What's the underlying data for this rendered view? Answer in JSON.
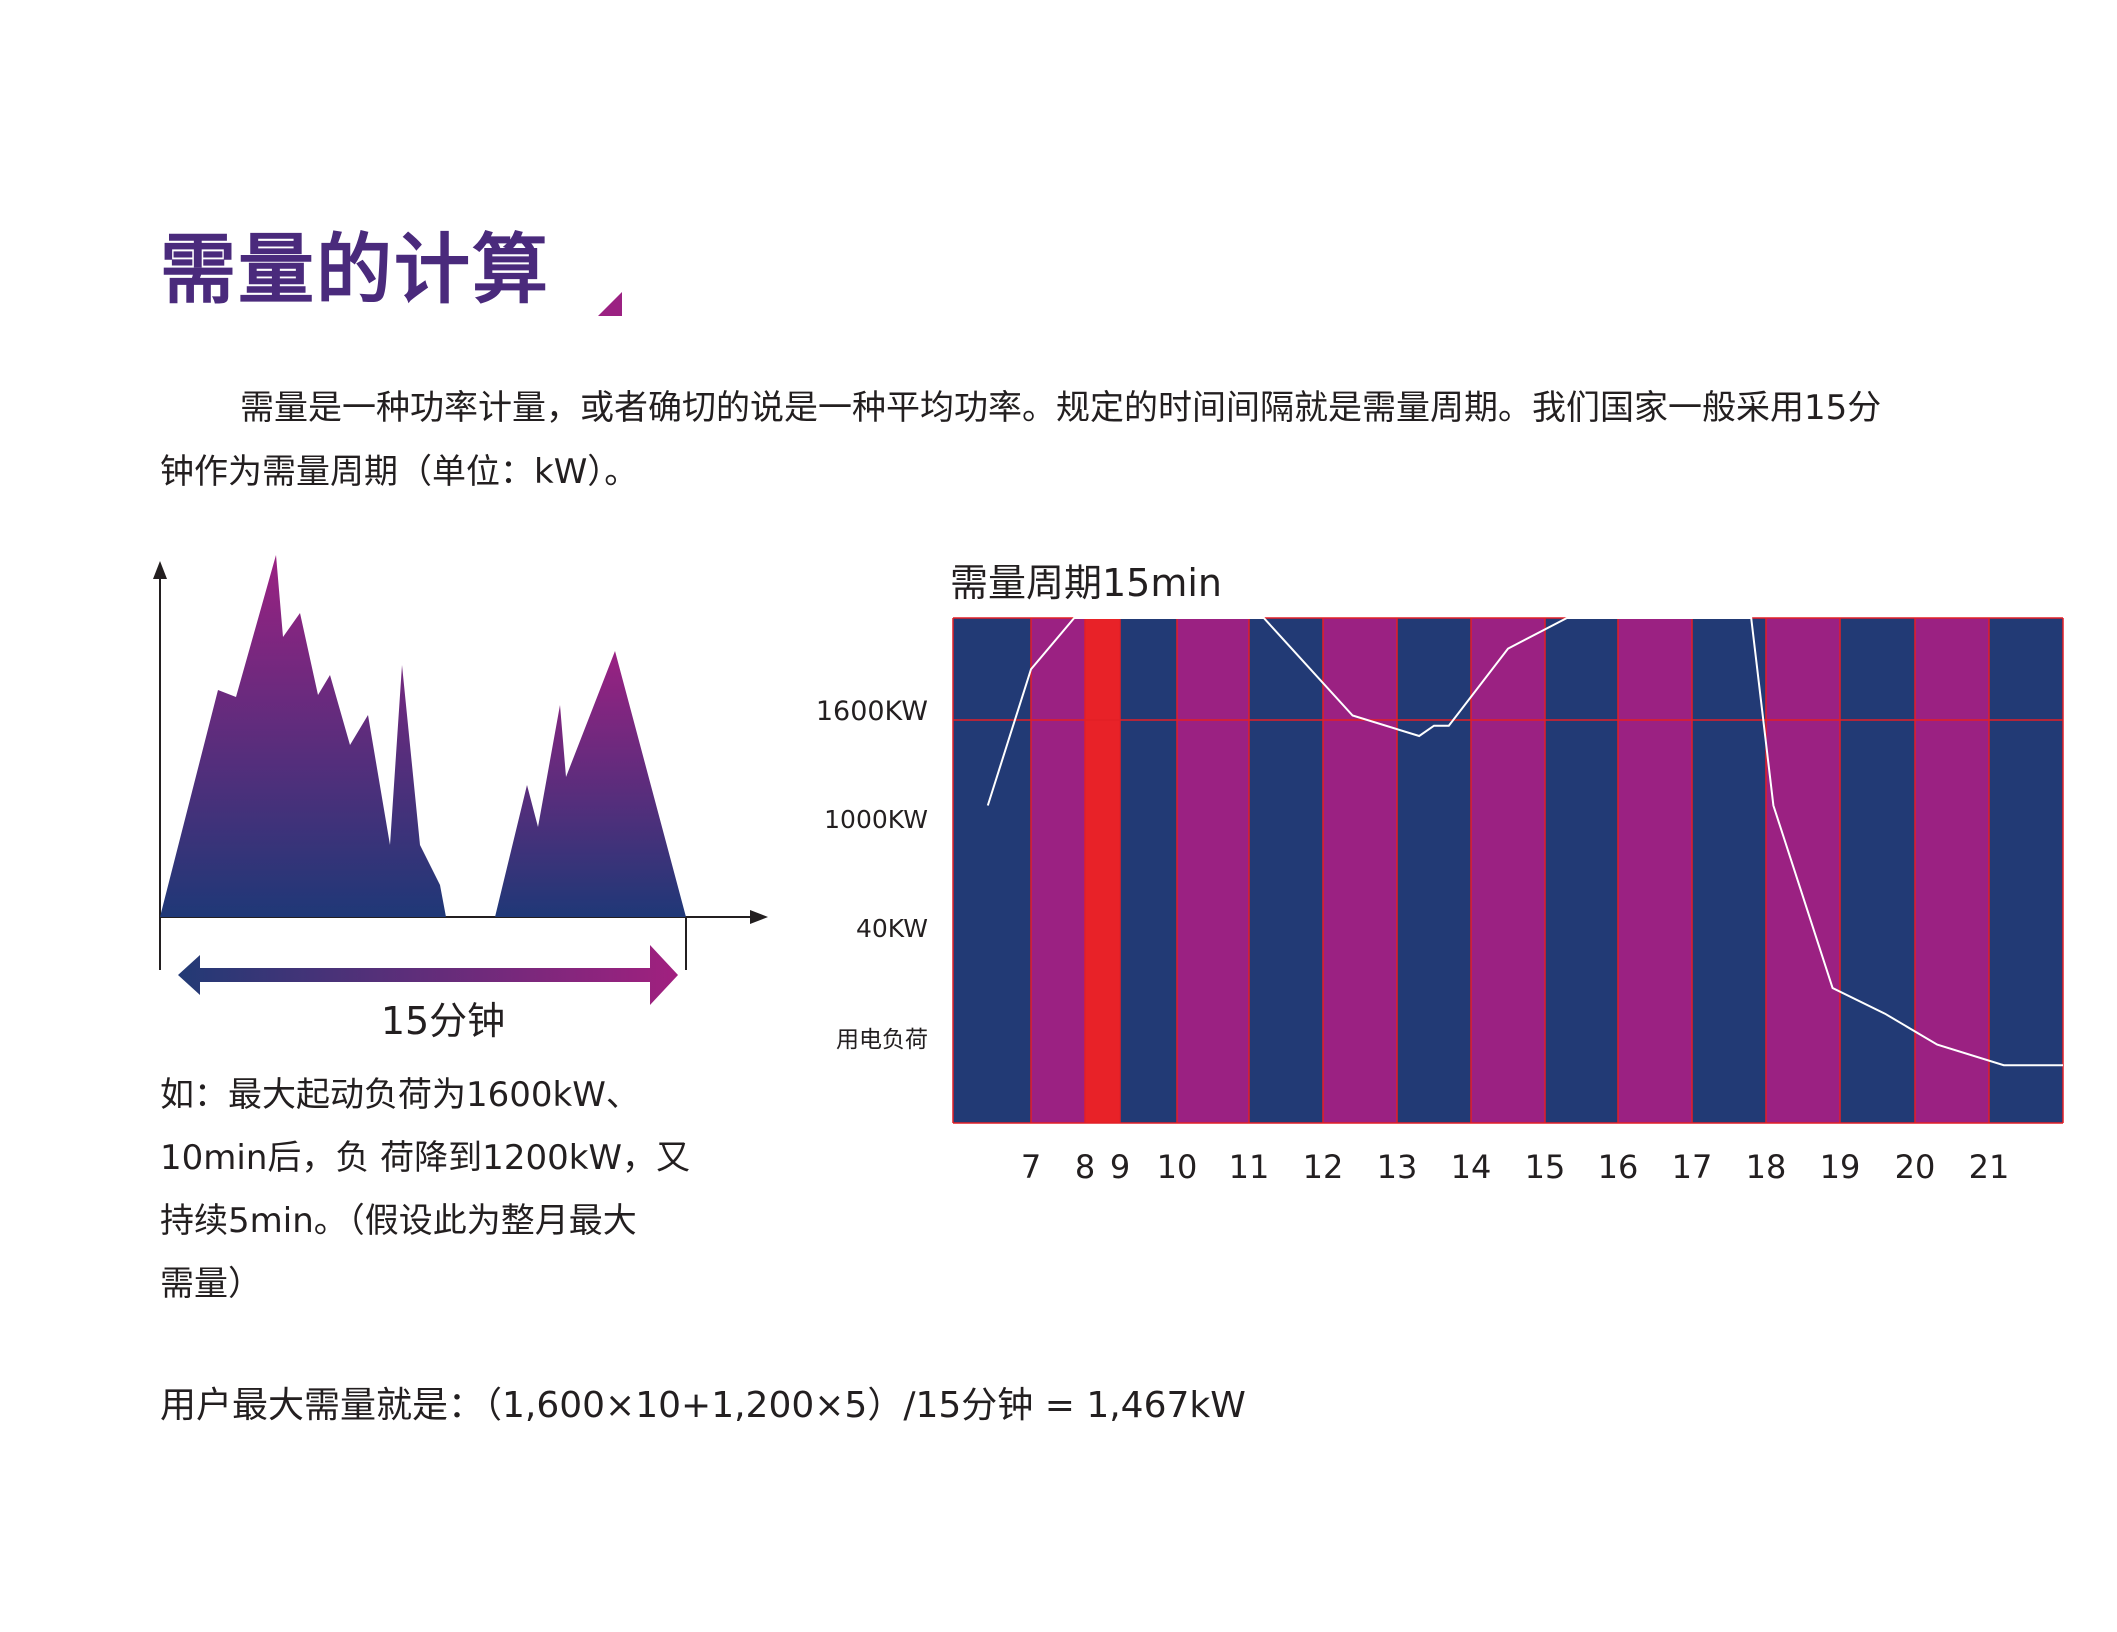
{
  "title": "需量的计算",
  "intro": {
    "line1": "需量是一种功率计量，或者确切的说是一种平均功率。规定的时间间隔就是需量周期。我们国家一般采用15分",
    "line2": "钟作为需量周期（单位：kW）。"
  },
  "left_diagram": {
    "period_label": "15分钟"
  },
  "example": {
    "lines": [
      "如：最大起动负荷为1600kW、",
      "10min后，负 荷降到1200kW，又",
      "持续5min。（假设此为整月最大",
      "需量）"
    ]
  },
  "chart_data": {
    "type": "line",
    "title": "需量周期15min",
    "ytick_labels": [
      "1600KW",
      "1000KW",
      "40KW",
      "用电负荷"
    ],
    "xtick_labels": [
      "7",
      "8",
      "9",
      "10",
      "11",
      "12",
      "13",
      "14",
      "15",
      "16",
      "17",
      "18",
      "19",
      "20",
      "21"
    ],
    "x": [
      6.2,
      7.0,
      7.8,
      8.2,
      8.3,
      8.6,
      9.1,
      9.3,
      9.5,
      10.3,
      10.5,
      11.2,
      12.4,
      13.3,
      13.5,
      13.7,
      14.5,
      15.3,
      15.6,
      15.8,
      16.2,
      17.8,
      18.1,
      18.9,
      19.6,
      20.3,
      21.2,
      22.1
    ],
    "y": [
      45,
      310,
      890,
      1040,
      820,
      940,
      830,
      680,
      700,
      670,
      720,
      630,
      220,
      180,
      200,
      200,
      350,
      790,
      690,
      550,
      500,
      420,
      45,
      -310,
      -360,
      -420,
      -460,
      -460
    ],
    "highlight_band": {
      "from": 1000,
      "to": 1600
    },
    "highlight_period": "8",
    "colors": {
      "column_a": "#223a75",
      "column_b": "#9b2182",
      "highlight_column": "#e82228",
      "band_over_a": "#8584a6",
      "band_over_b": "#c48cb8",
      "band_over_highlight": "#f4977a",
      "grid_line": "#e21f26",
      "load_line": "#ffffff"
    }
  },
  "formula": "用户最大需量就是：（1,600×10+1,200×5）/15分钟 = 1,467kW"
}
